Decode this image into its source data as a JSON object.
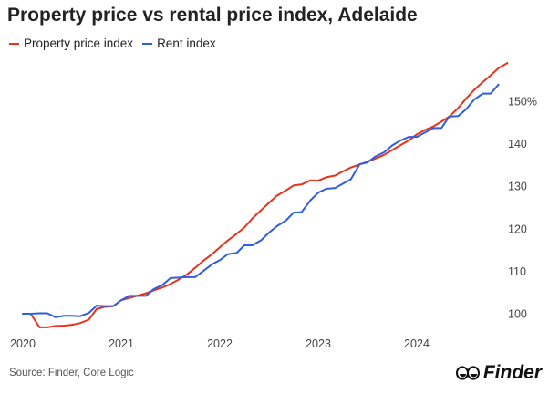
{
  "chart_data": {
    "type": "line",
    "title": "Property price vs rental price index, Adelaide",
    "xlabel": "",
    "ylabel": "",
    "x_ticks": [
      "2020",
      "2021",
      "2022",
      "2023",
      "2024"
    ],
    "y_ticks": [
      "100",
      "110",
      "120",
      "130",
      "140",
      "150%"
    ],
    "ylim": [
      97,
      160
    ],
    "xlim": [
      2020.0,
      2024.92
    ],
    "grid": false,
    "legend_position": "top-left",
    "series": [
      {
        "name": "Property price index",
        "color": "#e8321c",
        "x": [
          2020.0,
          2020.08,
          2020.17,
          2020.25,
          2020.33,
          2020.42,
          2020.5,
          2020.58,
          2020.67,
          2020.75,
          2020.83,
          2020.92,
          2021.0,
          2021.08,
          2021.17,
          2021.25,
          2021.33,
          2021.42,
          2021.5,
          2021.58,
          2021.67,
          2021.75,
          2021.83,
          2021.92,
          2022.0,
          2022.08,
          2022.17,
          2022.25,
          2022.33,
          2022.42,
          2022.5,
          2022.58,
          2022.67,
          2022.75,
          2022.83,
          2022.92,
          2023.0,
          2023.08,
          2023.17,
          2023.25,
          2023.33,
          2023.42,
          2023.5,
          2023.58,
          2023.67,
          2023.75,
          2023.83,
          2023.92,
          2024.0,
          2024.08,
          2024.17,
          2024.25,
          2024.33,
          2024.42,
          2024.5,
          2024.58,
          2024.67,
          2024.75,
          2024.83,
          2024.92
        ],
        "values": [
          100.0,
          100.0,
          96.8,
          96.8,
          97.1,
          97.2,
          97.4,
          97.8,
          98.6,
          101.1,
          101.6,
          101.8,
          103.2,
          103.7,
          104.3,
          104.8,
          105.5,
          106.2,
          107.0,
          108.0,
          109.3,
          110.8,
          112.4,
          114.0,
          115.6,
          117.2,
          118.8,
          120.3,
          122.4,
          124.4,
          126.1,
          127.8,
          129.0,
          130.2,
          130.4,
          131.4,
          131.3,
          132.1,
          132.5,
          133.5,
          134.4,
          135.1,
          135.8,
          136.5,
          137.4,
          138.5,
          139.6,
          140.8,
          142.2,
          143.2,
          144.1,
          145.2,
          146.4,
          148.4,
          150.6,
          152.6,
          154.5,
          156.1,
          157.8,
          159.0
        ]
      },
      {
        "name": "Rent index",
        "color": "#2f5fe0",
        "x": [
          2020.0,
          2020.08,
          2020.17,
          2020.25,
          2020.33,
          2020.42,
          2020.5,
          2020.58,
          2020.67,
          2020.75,
          2020.83,
          2020.92,
          2021.0,
          2021.08,
          2021.17,
          2021.25,
          2021.33,
          2021.42,
          2021.5,
          2021.58,
          2021.67,
          2021.75,
          2021.83,
          2021.92,
          2022.0,
          2022.08,
          2022.17,
          2022.25,
          2022.33,
          2022.42,
          2022.5,
          2022.58,
          2022.67,
          2022.75,
          2022.83,
          2022.92,
          2023.0,
          2023.08,
          2023.17,
          2023.25,
          2023.33,
          2023.42,
          2023.5,
          2023.58,
          2023.67,
          2023.75,
          2023.83,
          2023.92,
          2024.0,
          2024.08,
          2024.17,
          2024.25,
          2024.33,
          2024.42,
          2024.5,
          2024.58,
          2024.67,
          2024.75,
          2024.83,
          2024.92
        ],
        "values": [
          100.0,
          100.0,
          100.1,
          100.1,
          99.2,
          99.5,
          99.5,
          99.4,
          100.2,
          101.9,
          101.8,
          101.8,
          103.2,
          104.2,
          104.2,
          104.2,
          105.8,
          106.8,
          108.4,
          108.5,
          108.6,
          108.6,
          110.0,
          111.6,
          112.6,
          114.0,
          114.3,
          116.1,
          116.1,
          117.3,
          119.1,
          120.6,
          121.9,
          123.8,
          123.9,
          126.7,
          128.5,
          129.4,
          129.6,
          130.6,
          131.6,
          135.2,
          135.6,
          137.0,
          138.0,
          139.6,
          140.7,
          141.6,
          141.6,
          142.6,
          143.7,
          143.7,
          146.4,
          146.5,
          148.1,
          150.3,
          151.8,
          151.8,
          153.9,
          null
        ]
      }
    ]
  },
  "source_note": "Source: Finder, Core Logic",
  "brand": {
    "name": "Finder",
    "logo_icon": "finder-eyes-logo-icon"
  }
}
